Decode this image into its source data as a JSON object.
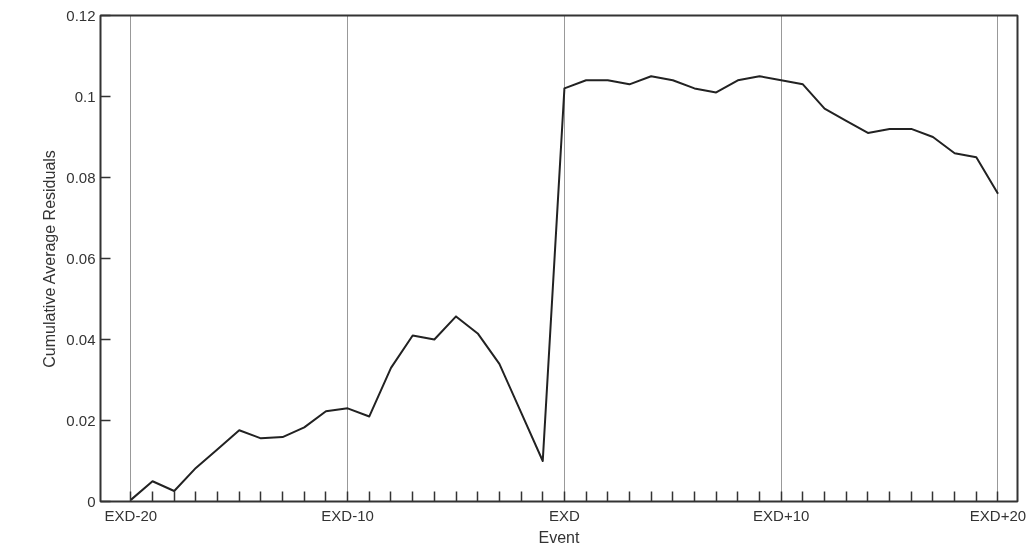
{
  "chart_data": {
    "type": "line",
    "xlabel": "Event",
    "ylabel": "Cumulative Average Residuals",
    "categories": [
      "EXD-20",
      null,
      null,
      null,
      null,
      null,
      null,
      null,
      null,
      null,
      "EXD-10",
      null,
      null,
      null,
      null,
      null,
      null,
      null,
      null,
      null,
      "EXD",
      null,
      null,
      null,
      null,
      null,
      null,
      null,
      null,
      null,
      "EXD+10",
      null,
      null,
      null,
      null,
      null,
      null,
      null,
      null,
      null,
      "EXD+20"
    ],
    "series": [
      {
        "color": "#222222",
        "values": [
          0.0004,
          0.005,
          0.0026,
          0.0083,
          0.0129,
          0.0176,
          0.0156,
          0.0159,
          0.0183,
          0.0223,
          0.023,
          0.021,
          0.033,
          0.041,
          0.04,
          0.0457,
          0.0415,
          0.034,
          0.022,
          0.01,
          0.102,
          0.104,
          0.104,
          0.103,
          0.105,
          0.104,
          0.102,
          0.101,
          0.104,
          0.105,
          0.104,
          0.103,
          0.097,
          0.094,
          0.091,
          0.092,
          0.092,
          0.09,
          0.086,
          0.085,
          0.076
        ]
      }
    ],
    "ylim": [
      0,
      0.12
    ],
    "yticks": [
      0,
      0.02,
      0.04,
      0.06,
      0.08,
      0.1,
      0.12
    ],
    "grid": "x",
    "marker": "none",
    "line_style": "solid"
  }
}
